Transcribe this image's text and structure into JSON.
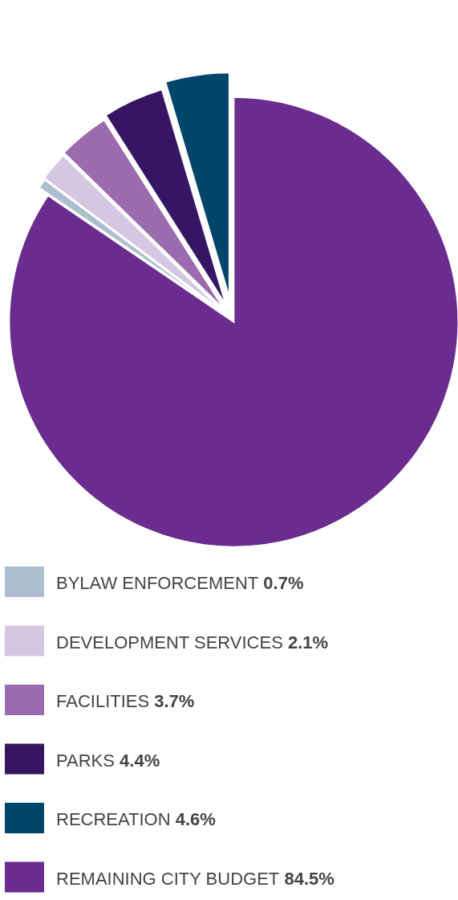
{
  "chart_data": {
    "type": "pie",
    "categories": [
      "BYLAW ENFORCEMENT",
      "DEVELOPMENT SERVICES",
      "FACILITIES",
      "PARKS",
      "RECREATION",
      "REMAINING CITY BUDGET"
    ],
    "values": [
      0.7,
      2.1,
      3.7,
      4.4,
      4.6,
      84.5
    ],
    "value_labels": [
      "0.7%",
      "2.1%",
      "3.7%",
      "4.4%",
      "4.6%",
      "84.5%"
    ],
    "colors": [
      "#adbfcf",
      "#d5c6e2",
      "#9b6bad",
      "#361563",
      "#00466b",
      "#6a2c8e"
    ],
    "legend": "bottom"
  }
}
